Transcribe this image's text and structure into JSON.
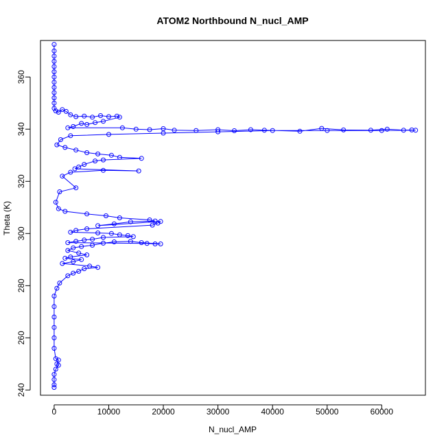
{
  "chart_data": {
    "type": "line",
    "title": "ATOM2 Northbound N_nucl_AMP",
    "xlabel": "N_nucl_AMP",
    "ylabel": "Theta (K)",
    "xlim": [
      -2500,
      68000
    ],
    "ylim": [
      238,
      374
    ],
    "xticks": [
      0,
      10000,
      20000,
      30000,
      40000,
      50000,
      60000
    ],
    "xtick_labels": [
      "0",
      "10000",
      "20000",
      "30000",
      "40000",
      "50000",
      "60000"
    ],
    "yticks": [
      240,
      260,
      280,
      300,
      320,
      340,
      360
    ],
    "ytick_labels": [
      "240",
      "260",
      "280",
      "300",
      "320",
      "340",
      "360"
    ],
    "grid": false,
    "marker": "open-circle",
    "series": [
      {
        "color": "#0000ff",
        "points": [
          [
            0,
            372.5
          ],
          [
            0,
            370
          ],
          [
            0,
            368
          ],
          [
            0,
            366
          ],
          [
            0,
            364
          ],
          [
            0,
            362
          ],
          [
            0,
            360
          ],
          [
            0,
            358
          ],
          [
            0,
            356
          ],
          [
            0,
            354
          ],
          [
            0,
            352
          ],
          [
            0,
            350
          ],
          [
            0,
            348
          ],
          [
            300,
            347
          ],
          [
            800,
            346.5
          ],
          [
            1500,
            347.5
          ],
          [
            2200,
            346.8
          ],
          [
            3000,
            345.5
          ],
          [
            4000,
            344.8
          ],
          [
            5500,
            345
          ],
          [
            7000,
            344.6
          ],
          [
            8500,
            345.2
          ],
          [
            10000,
            344.8
          ],
          [
            11500,
            345
          ],
          [
            12000,
            344.6
          ],
          [
            9000,
            343
          ],
          [
            7500,
            342.5
          ],
          [
            6000,
            341.8
          ],
          [
            5000,
            342.2
          ],
          [
            3500,
            341
          ],
          [
            2500,
            340.5
          ],
          [
            12500,
            340.5
          ],
          [
            15000,
            340
          ],
          [
            17500,
            339.8
          ],
          [
            20000,
            340.2
          ],
          [
            22000,
            339.6
          ],
          [
            26000,
            339.5
          ],
          [
            30000,
            339.8
          ],
          [
            33000,
            339.4
          ],
          [
            36000,
            339.8
          ],
          [
            38500,
            339.6
          ],
          [
            45000,
            339.2
          ],
          [
            49000,
            340.3
          ],
          [
            53000,
            339.7
          ],
          [
            58000,
            339.6
          ],
          [
            61000,
            340
          ],
          [
            64000,
            339.6
          ],
          [
            65500,
            339.7
          ],
          [
            66200,
            339.6
          ],
          [
            60000,
            339.5
          ],
          [
            50000,
            339.5
          ],
          [
            40000,
            339.5
          ],
          [
            30000,
            339
          ],
          [
            20000,
            338.5
          ],
          [
            10000,
            338
          ],
          [
            3000,
            337.5
          ],
          [
            1200,
            336
          ],
          [
            500,
            334
          ],
          [
            2000,
            333
          ],
          [
            4000,
            332
          ],
          [
            6000,
            331
          ],
          [
            8000,
            330.5
          ],
          [
            10500,
            330
          ],
          [
            12000,
            329.2
          ],
          [
            16000,
            328.8
          ],
          [
            9000,
            328.2
          ],
          [
            7500,
            327.8
          ],
          [
            5500,
            326.5
          ],
          [
            4500,
            325.5
          ],
          [
            3800,
            324.8
          ],
          [
            15500,
            324
          ],
          [
            9000,
            324.2
          ],
          [
            3000,
            323.5
          ],
          [
            1500,
            322
          ],
          [
            4000,
            317.5
          ],
          [
            1000,
            316
          ],
          [
            300,
            312
          ],
          [
            800,
            309.5
          ],
          [
            2000,
            308.5
          ],
          [
            6000,
            307.5
          ],
          [
            9500,
            306.8
          ],
          [
            12000,
            306
          ],
          [
            17500,
            305.2
          ],
          [
            18500,
            304.8
          ],
          [
            14000,
            304.5
          ],
          [
            11000,
            303.7
          ],
          [
            8000,
            303
          ],
          [
            19500,
            304.6
          ],
          [
            19000,
            304
          ],
          [
            18000,
            303.2
          ],
          [
            6000,
            301.8
          ],
          [
            4000,
            301.2
          ],
          [
            3000,
            300.5
          ],
          [
            8000,
            300.2
          ],
          [
            10500,
            300
          ],
          [
            12000,
            299.5
          ],
          [
            13500,
            299.2
          ],
          [
            14500,
            298.8
          ],
          [
            9000,
            298.5
          ],
          [
            7000,
            297.8
          ],
          [
            5500,
            297.5
          ],
          [
            4000,
            297
          ],
          [
            2500,
            296.5
          ],
          [
            17000,
            296.2
          ],
          [
            18500,
            296
          ],
          [
            19500,
            296
          ],
          [
            16000,
            296.5
          ],
          [
            14000,
            297
          ],
          [
            11000,
            296.8
          ],
          [
            9000,
            296.3
          ],
          [
            7000,
            295.5
          ],
          [
            5000,
            295
          ],
          [
            3500,
            294.5
          ],
          [
            2500,
            293.5
          ],
          [
            4500,
            292.5
          ],
          [
            6000,
            291.8
          ],
          [
            3000,
            291
          ],
          [
            2000,
            290.5
          ],
          [
            5000,
            290
          ],
          [
            3500,
            289.2
          ],
          [
            1500,
            288.5
          ],
          [
            6500,
            287.5
          ],
          [
            8000,
            287
          ],
          [
            5500,
            286.5
          ],
          [
            4500,
            285.5
          ],
          [
            3500,
            284.8
          ],
          [
            2500,
            283.8
          ],
          [
            1000,
            281
          ],
          [
            500,
            279
          ],
          [
            0,
            276
          ],
          [
            0,
            272
          ],
          [
            0,
            268
          ],
          [
            0,
            264
          ],
          [
            0,
            260
          ],
          [
            0,
            256
          ],
          [
            300,
            252
          ],
          [
            800,
            251.5
          ],
          [
            500,
            250
          ],
          [
            800,
            249.5
          ],
          [
            300,
            248
          ],
          [
            0,
            246
          ],
          [
            0,
            244
          ],
          [
            0,
            242
          ],
          [
            0,
            241
          ]
        ]
      }
    ]
  }
}
